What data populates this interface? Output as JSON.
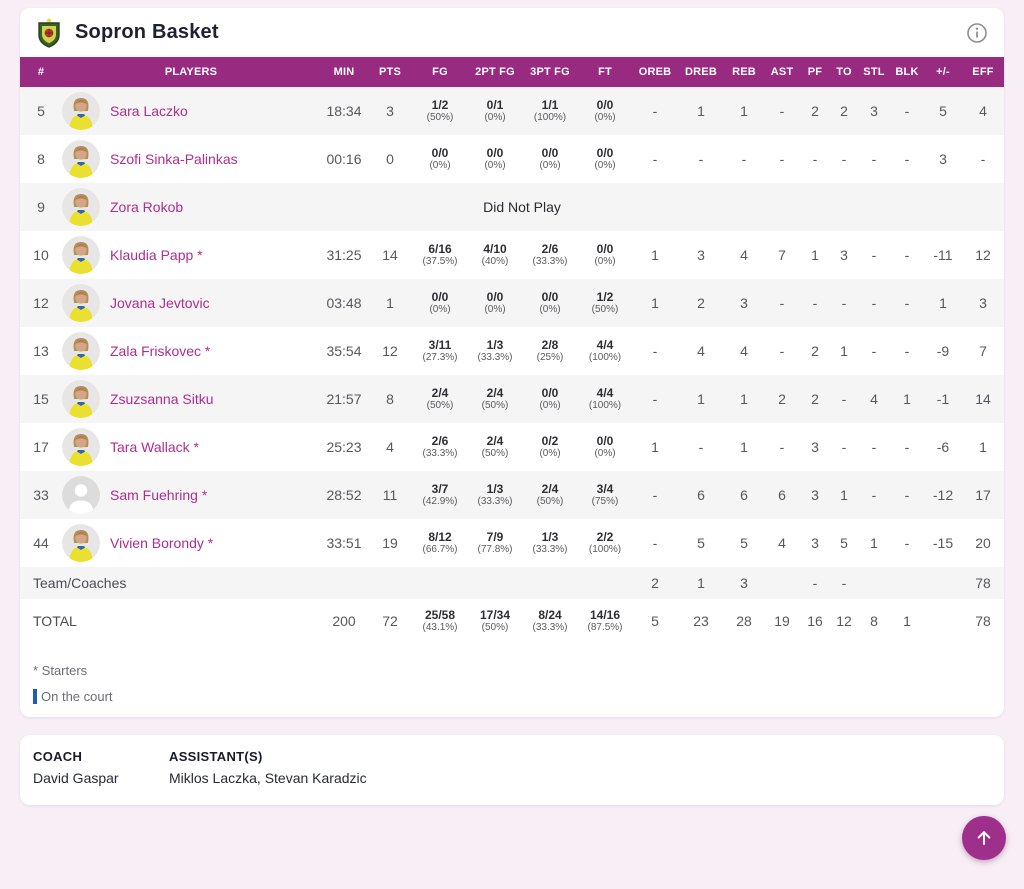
{
  "header": {
    "team_name": "Sopron Basket"
  },
  "table": {
    "columns": [
      {
        "key": "num",
        "label": "#"
      },
      {
        "key": "player",
        "label": "PLAYERS"
      },
      {
        "key": "min",
        "label": "MIN"
      },
      {
        "key": "pts",
        "label": "PTS"
      },
      {
        "key": "fg",
        "label": "FG",
        "type": "frac"
      },
      {
        "key": "fg2",
        "label": "2PT FG",
        "type": "frac"
      },
      {
        "key": "fg3",
        "label": "3PT FG",
        "type": "frac"
      },
      {
        "key": "ft",
        "label": "FT",
        "type": "frac"
      },
      {
        "key": "oreb",
        "label": "OREB"
      },
      {
        "key": "dreb",
        "label": "DREB"
      },
      {
        "key": "reb",
        "label": "REB"
      },
      {
        "key": "ast",
        "label": "AST"
      },
      {
        "key": "pf",
        "label": "PF"
      },
      {
        "key": "to",
        "label": "TO"
      },
      {
        "key": "stl",
        "label": "STL"
      },
      {
        "key": "blk",
        "label": "BLK"
      },
      {
        "key": "pm",
        "label": "+/-"
      },
      {
        "key": "eff",
        "label": "EFF"
      }
    ],
    "rows": [
      {
        "num": "5",
        "name": "Sara Laczko",
        "avatar": "photo",
        "min": "18:34",
        "pts": "3",
        "fg": [
          "1/2",
          "(50%)"
        ],
        "fg2": [
          "0/1",
          "(0%)"
        ],
        "fg3": [
          "1/1",
          "(100%)"
        ],
        "ft": [
          "0/0",
          "(0%)"
        ],
        "oreb": "-",
        "dreb": "1",
        "reb": "1",
        "ast": "-",
        "pf": "2",
        "to": "2",
        "stl": "3",
        "blk": "-",
        "pm": "5",
        "eff": "4"
      },
      {
        "num": "8",
        "name": "Szofi Sinka-Palinkas",
        "avatar": "photo",
        "min": "00:16",
        "pts": "0",
        "fg": [
          "0/0",
          "(0%)"
        ],
        "fg2": [
          "0/0",
          "(0%)"
        ],
        "fg3": [
          "0/0",
          "(0%)"
        ],
        "ft": [
          "0/0",
          "(0%)"
        ],
        "oreb": "-",
        "dreb": "-",
        "reb": "-",
        "ast": "-",
        "pf": "-",
        "to": "-",
        "stl": "-",
        "blk": "-",
        "pm": "3",
        "eff": "-"
      },
      {
        "num": "9",
        "name": "Zora Rokob",
        "avatar": "photo",
        "dnp": "Did Not Play"
      },
      {
        "num": "10",
        "name": "Klaudia Papp *",
        "avatar": "photo",
        "min": "31:25",
        "pts": "14",
        "fg": [
          "6/16",
          "(37.5%)"
        ],
        "fg2": [
          "4/10",
          "(40%)"
        ],
        "fg3": [
          "2/6",
          "(33.3%)"
        ],
        "ft": [
          "0/0",
          "(0%)"
        ],
        "oreb": "1",
        "dreb": "3",
        "reb": "4",
        "ast": "7",
        "pf": "1",
        "to": "3",
        "stl": "-",
        "blk": "-",
        "pm": "-11",
        "eff": "12"
      },
      {
        "num": "12",
        "name": "Jovana Jevtovic",
        "avatar": "photo",
        "min": "03:48",
        "pts": "1",
        "fg": [
          "0/0",
          "(0%)"
        ],
        "fg2": [
          "0/0",
          "(0%)"
        ],
        "fg3": [
          "0/0",
          "(0%)"
        ],
        "ft": [
          "1/2",
          "(50%)"
        ],
        "oreb": "1",
        "dreb": "2",
        "reb": "3",
        "ast": "-",
        "pf": "-",
        "to": "-",
        "stl": "-",
        "blk": "-",
        "pm": "1",
        "eff": "3"
      },
      {
        "num": "13",
        "name": "Zala Friskovec *",
        "avatar": "photo",
        "min": "35:54",
        "pts": "12",
        "fg": [
          "3/11",
          "(27.3%)"
        ],
        "fg2": [
          "1/3",
          "(33.3%)"
        ],
        "fg3": [
          "2/8",
          "(25%)"
        ],
        "ft": [
          "4/4",
          "(100%)"
        ],
        "oreb": "-",
        "dreb": "4",
        "reb": "4",
        "ast": "-",
        "pf": "2",
        "to": "1",
        "stl": "-",
        "blk": "-",
        "pm": "-9",
        "eff": "7"
      },
      {
        "num": "15",
        "name": "Zsuzsanna Sitku",
        "avatar": "photo",
        "min": "21:57",
        "pts": "8",
        "fg": [
          "2/4",
          "(50%)"
        ],
        "fg2": [
          "2/4",
          "(50%)"
        ],
        "fg3": [
          "0/0",
          "(0%)"
        ],
        "ft": [
          "4/4",
          "(100%)"
        ],
        "oreb": "-",
        "dreb": "1",
        "reb": "1",
        "ast": "2",
        "pf": "2",
        "to": "-",
        "stl": "4",
        "blk": "1",
        "pm": "-1",
        "eff": "14"
      },
      {
        "num": "17",
        "name": "Tara Wallack *",
        "avatar": "photo",
        "min": "25:23",
        "pts": "4",
        "fg": [
          "2/6",
          "(33.3%)"
        ],
        "fg2": [
          "2/4",
          "(50%)"
        ],
        "fg3": [
          "0/2",
          "(0%)"
        ],
        "ft": [
          "0/0",
          "(0%)"
        ],
        "oreb": "1",
        "dreb": "-",
        "reb": "1",
        "ast": "-",
        "pf": "3",
        "to": "-",
        "stl": "-",
        "blk": "-",
        "pm": "-6",
        "eff": "1"
      },
      {
        "num": "33",
        "name": "Sam Fuehring *",
        "avatar": "silhouette",
        "min": "28:52",
        "pts": "11",
        "fg": [
          "3/7",
          "(42.9%)"
        ],
        "fg2": [
          "1/3",
          "(33.3%)"
        ],
        "fg3": [
          "2/4",
          "(50%)"
        ],
        "ft": [
          "3/4",
          "(75%)"
        ],
        "oreb": "-",
        "dreb": "6",
        "reb": "6",
        "ast": "6",
        "pf": "3",
        "to": "1",
        "stl": "-",
        "blk": "-",
        "pm": "-12",
        "eff": "17"
      },
      {
        "num": "44",
        "name": "Vivien Borondy *",
        "avatar": "photo",
        "min": "33:51",
        "pts": "19",
        "fg": [
          "8/12",
          "(66.7%)"
        ],
        "fg2": [
          "7/9",
          "(77.8%)"
        ],
        "fg3": [
          "1/3",
          "(33.3%)"
        ],
        "ft": [
          "2/2",
          "(100%)"
        ],
        "oreb": "-",
        "dreb": "5",
        "reb": "5",
        "ast": "4",
        "pf": "3",
        "to": "5",
        "stl": "1",
        "blk": "-",
        "pm": "-15",
        "eff": "20"
      }
    ],
    "team_row": {
      "label": "Team/Coaches",
      "min": "",
      "pts": "",
      "oreb": "2",
      "dreb": "1",
      "reb": "3",
      "ast": "",
      "pf": "-",
      "to": "-",
      "stl": "",
      "blk": "",
      "pm": "",
      "eff": "78"
    },
    "total_row": {
      "label": "TOTAL",
      "min": "200",
      "pts": "72",
      "fg": [
        "25/58",
        "(43.1%)"
      ],
      "fg2": [
        "17/34",
        "(50%)"
      ],
      "fg3": [
        "8/24",
        "(33.3%)"
      ],
      "ft": [
        "14/16",
        "(87.5%)"
      ],
      "oreb": "5",
      "dreb": "23",
      "reb": "28",
      "ast": "19",
      "pf": "16",
      "to": "12",
      "stl": "8",
      "blk": "1",
      "pm": "",
      "eff": "78"
    }
  },
  "legend": {
    "starters": "* Starters",
    "on_court": "On the court"
  },
  "coaches": {
    "coach_label": "COACH",
    "coach_name": "David Gaspar",
    "assistants_label": "ASSISTANT(S)",
    "assistants_names": "Miklos Laczka, Stevan Karadzic"
  },
  "colors": {
    "header_purple": "#982a80",
    "player_name": "#ae2d90",
    "page_bg": "#f8eef6",
    "row_stripe": "#f5f5f6",
    "on_court_blue": "#1d5fae",
    "fab_purple": "#9e2f8b"
  }
}
